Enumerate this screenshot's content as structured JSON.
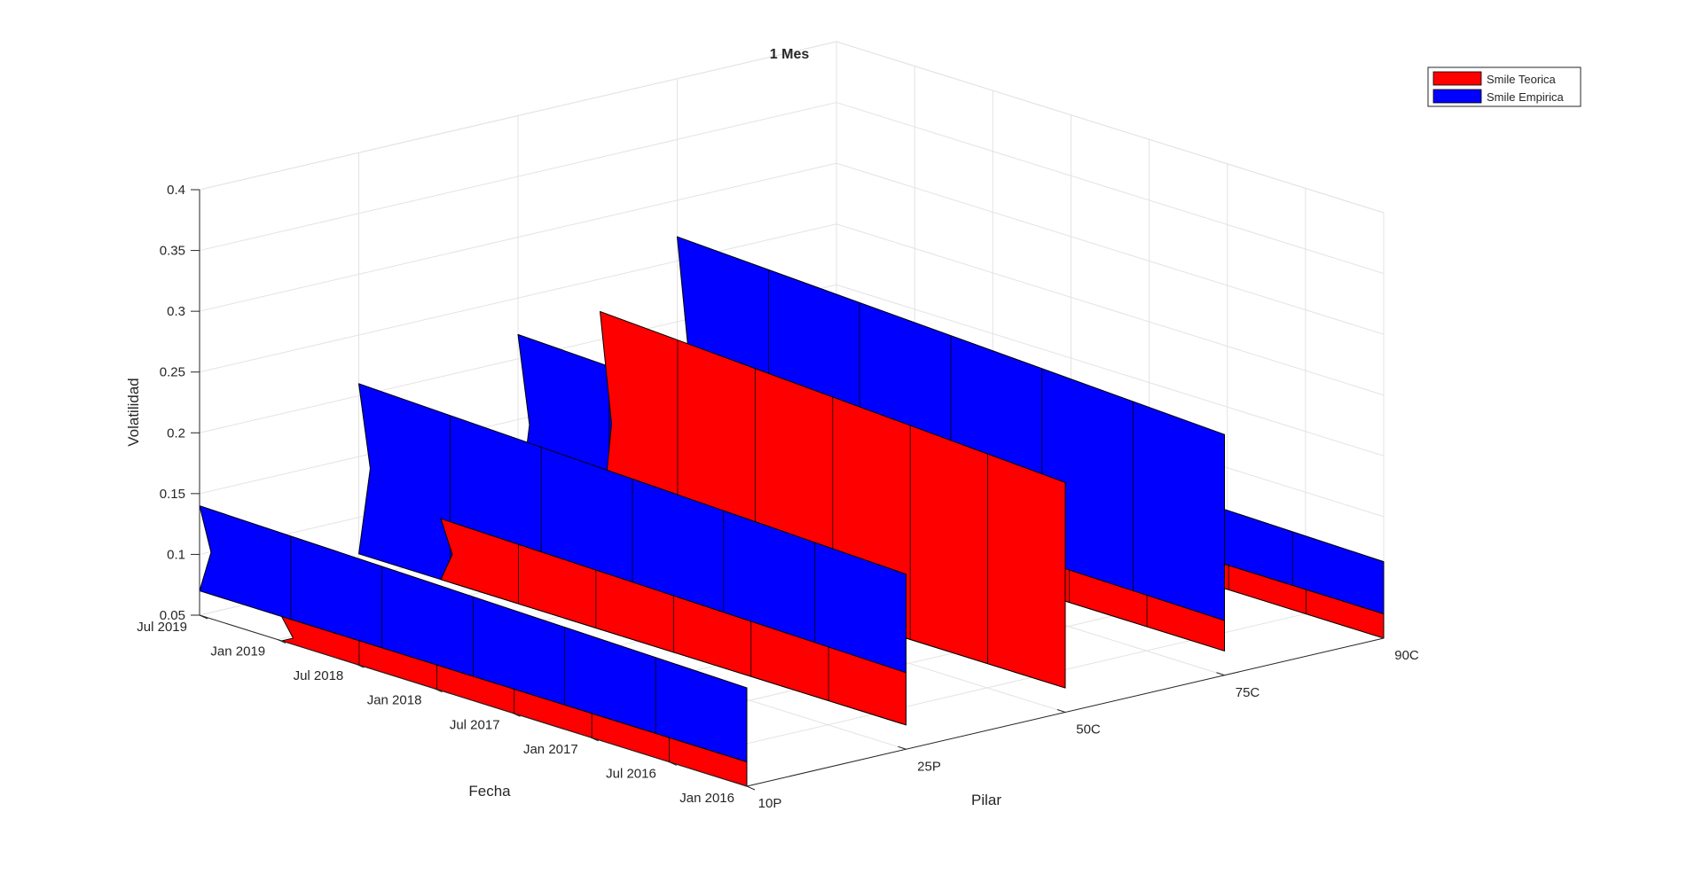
{
  "chart_data": {
    "type": "surface3d",
    "title": "1 Mes",
    "xlabel": "Pilar",
    "ylabel": "Fecha",
    "zlabel": "Volatilidad",
    "x_ticks": [
      "10P",
      "25P",
      "50C",
      "75C",
      "90C"
    ],
    "y_ticks": [
      "Jan 2016",
      "Jul 2016",
      "Jan 2017",
      "Jul 2017",
      "Jan 2018",
      "Jul 2018",
      "Jan 2019",
      "Jul 2019"
    ],
    "z_ticks": [
      "0.05",
      "0.1",
      "0.15",
      "0.2",
      "0.25",
      "0.3",
      "0.35",
      "0.4"
    ],
    "zlim": [
      0.05,
      0.4
    ],
    "grid": true,
    "legend_position": "top-right",
    "series": [
      {
        "name": "Smile Teorica",
        "color": "#ff0000",
        "values_by_pillar": [
          0.05,
          0.12,
          0.26,
          0.1,
          0.05
        ]
      },
      {
        "name": "Smile Empirica",
        "color": "#0000ff",
        "values_by_pillar": [
          0.14,
          0.21,
          0.22,
          0.27,
          0.12
        ]
      }
    ]
  }
}
